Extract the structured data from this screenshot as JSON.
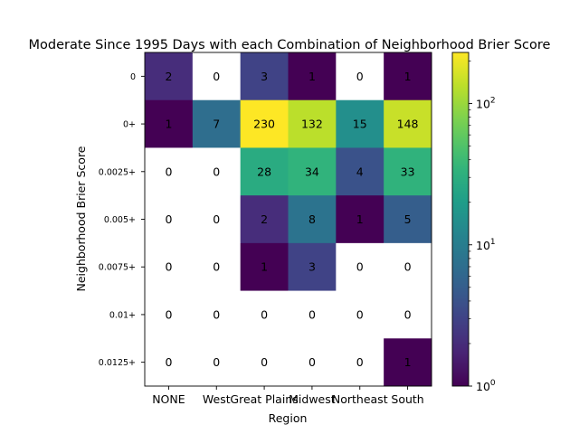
{
  "chart_data": {
    "type": "heatmap",
    "title": "Moderate Since 1995 Days with each Combination of Neighborhood Brier Score",
    "xlabel": "Region",
    "ylabel": "Neighborhood Brier Score",
    "x_categories": [
      "NONE",
      "West",
      "Great Plains",
      "Midwest",
      "Northeast",
      "South"
    ],
    "y_categories": [
      "0",
      "0+",
      "0.0025+",
      "0.005+",
      "0.0075+",
      "0.01+",
      "0.0125+"
    ],
    "values": [
      [
        2,
        0,
        3,
        1,
        0,
        1
      ],
      [
        1,
        7,
        230,
        132,
        15,
        148
      ],
      [
        0,
        0,
        28,
        34,
        4,
        33
      ],
      [
        0,
        0,
        2,
        8,
        1,
        5
      ],
      [
        0,
        0,
        1,
        3,
        0,
        0
      ],
      [
        0,
        0,
        0,
        0,
        0,
        0
      ],
      [
        0,
        0,
        0,
        0,
        0,
        1
      ]
    ],
    "colorbar": {
      "scale": "log",
      "colormap": "viridis",
      "range": [
        1,
        230
      ],
      "tick_labels": [
        {
          "base": "10",
          "exp": "0",
          "value": 1
        },
        {
          "base": "10",
          "exp": "1",
          "value": 10
        },
        {
          "base": "10",
          "exp": "2",
          "value": 100
        }
      ]
    },
    "zero_cells_color": "#ffffff"
  }
}
